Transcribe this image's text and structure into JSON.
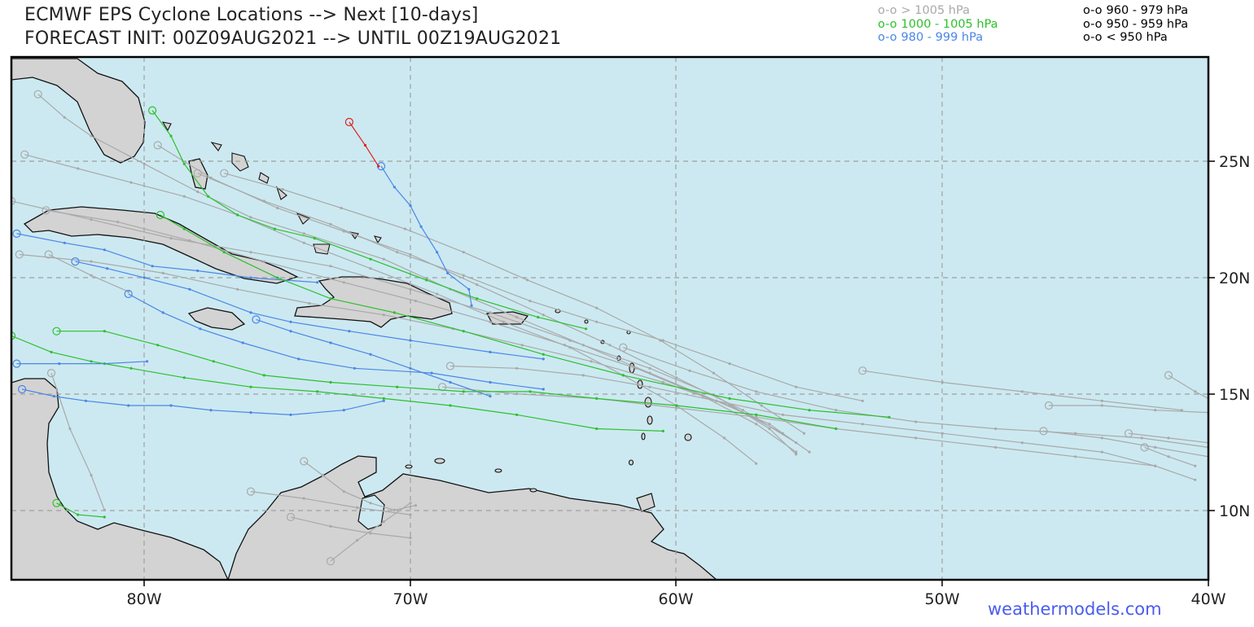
{
  "title": {
    "line1": "ECMWF EPS Cyclone Locations --> Next [10-days]",
    "line2": "FORECAST INIT: 00Z09AUG2021 --> UNTIL 00Z19AUG2021"
  },
  "legend": {
    "symbol": "o-o",
    "items": [
      {
        "label": "> 1005 hPa",
        "color": "#a9a9a9"
      },
      {
        "label": "1000 - 1005 hPa",
        "color": "#2cc02c"
      },
      {
        "label": "980 - 999 hPa",
        "color": "#4a86e8"
      },
      {
        "label": "960 - 979 hPa",
        "color": "#e02020"
      },
      {
        "label": "950 - 959 hPa",
        "color": "#f07070"
      },
      {
        "label": "< 950 hPa",
        "color": "#e020e0"
      }
    ]
  },
  "axes": {
    "lon_ticks": [
      "80W",
      "70W",
      "60W",
      "50W",
      "40W"
    ],
    "lat_ticks": [
      "25N",
      "20N",
      "15N",
      "10N"
    ],
    "lon_range": [
      -85,
      -40
    ],
    "lat_range": [
      7.5,
      30
    ]
  },
  "credit": "weathermodels.com",
  "colors": {
    "ocean": "#cce9f1",
    "land": "#d3d3d3",
    "coast": "#111111",
    "grid": "#a0a0a0"
  },
  "tracks": [
    {
      "category": "980 - 999 hPa",
      "points": [
        [
          -71.1,
          25.3
        ],
        [
          -70.6,
          24.4
        ],
        [
          -70.0,
          23.6
        ],
        [
          -69.6,
          22.7
        ],
        [
          -69.0,
          21.6
        ],
        [
          -68.6,
          20.7
        ],
        [
          -67.8,
          20.0
        ],
        [
          -67.7,
          19.3
        ]
      ]
    },
    {
      "category": "960 - 979 hPa",
      "points": [
        [
          -72.3,
          27.2
        ],
        [
          -71.7,
          26.2
        ],
        [
          -71.2,
          25.3
        ]
      ]
    },
    {
      "category": "980 - 999 hPa",
      "points": [
        [
          -84.8,
          22.4
        ],
        [
          -83.0,
          22.0
        ],
        [
          -81.5,
          21.7
        ],
        [
          -79.7,
          21.0
        ],
        [
          -78.0,
          20.8
        ],
        [
          -76.0,
          20.5
        ],
        [
          -73.5,
          20.3
        ]
      ]
    },
    {
      "category": "980 - 999 hPa",
      "points": [
        [
          -82.6,
          21.2
        ],
        [
          -81.4,
          20.9
        ],
        [
          -80.0,
          20.5
        ],
        [
          -78.3,
          20.0
        ],
        [
          -76.0,
          19.0
        ],
        [
          -74.5,
          18.6
        ],
        [
          -72.3,
          18.2
        ],
        [
          -70.0,
          17.8
        ],
        [
          -67.0,
          17.3
        ],
        [
          -65.0,
          17.0
        ]
      ]
    },
    {
      "category": "980 - 999 hPa",
      "points": [
        [
          -80.6,
          19.8
        ],
        [
          -79.3,
          19.0
        ],
        [
          -77.9,
          18.3
        ],
        [
          -76.3,
          17.7
        ],
        [
          -74.2,
          17.0
        ],
        [
          -72.1,
          16.6
        ],
        [
          -69.2,
          16.4
        ],
        [
          -67.0,
          16.0
        ],
        [
          -65.0,
          15.7
        ]
      ]
    },
    {
      "category": "980 - 999 hPa",
      "points": [
        [
          -84.8,
          16.8
        ],
        [
          -83.2,
          16.8
        ],
        [
          -81.5,
          16.8
        ],
        [
          -79.9,
          16.9
        ]
      ]
    },
    {
      "category": "980 - 999 hPa",
      "points": [
        [
          -84.6,
          15.7
        ],
        [
          -83.4,
          15.4
        ],
        [
          -82.2,
          15.2
        ],
        [
          -80.6,
          15.0
        ],
        [
          -79.0,
          15.0
        ],
        [
          -77.5,
          14.8
        ],
        [
          -76.0,
          14.7
        ],
        [
          -74.5,
          14.6
        ],
        [
          -72.5,
          14.8
        ],
        [
          -71.0,
          15.2
        ]
      ]
    },
    {
      "category": "980 - 999 hPa",
      "points": [
        [
          -75.8,
          18.7
        ],
        [
          -74.5,
          18.2
        ],
        [
          -73.0,
          17.7
        ],
        [
          -71.5,
          17.2
        ],
        [
          -70.0,
          16.6
        ],
        [
          -68.5,
          16.0
        ],
        [
          -67.0,
          15.4
        ]
      ]
    },
    {
      "category": "1000 - 1005 hPa",
      "points": [
        [
          -79.4,
          23.2
        ],
        [
          -78.5,
          22.6
        ],
        [
          -77.0,
          21.6
        ],
        [
          -75.0,
          20.5
        ],
        [
          -73.0,
          19.6
        ],
        [
          -70.6,
          19.0
        ],
        [
          -68.0,
          18.2
        ],
        [
          -65.0,
          17.2
        ],
        [
          -62.0,
          16.3
        ],
        [
          -58.0,
          15.3
        ],
        [
          -55.0,
          14.8
        ],
        [
          -52.0,
          14.5
        ]
      ]
    },
    {
      "category": "1000 - 1005 hPa",
      "points": [
        [
          -83.3,
          18.2
        ],
        [
          -81.5,
          18.2
        ],
        [
          -79.5,
          17.6
        ],
        [
          -77.4,
          16.9
        ],
        [
          -75.5,
          16.3
        ],
        [
          -73.0,
          16.0
        ],
        [
          -70.5,
          15.8
        ],
        [
          -68.0,
          15.6
        ],
        [
          -65.5,
          15.6
        ],
        [
          -63.0,
          15.3
        ],
        [
          -60.0,
          15.0
        ],
        [
          -57.0,
          14.6
        ],
        [
          -54.0,
          14.0
        ]
      ]
    },
    {
      "category": "1000 - 1005 hPa",
      "points": [
        [
          -85.0,
          18.0
        ],
        [
          -83.5,
          17.3
        ],
        [
          -82.0,
          16.9
        ],
        [
          -80.5,
          16.6
        ],
        [
          -78.5,
          16.2
        ],
        [
          -76.0,
          15.8
        ],
        [
          -73.5,
          15.6
        ],
        [
          -71.0,
          15.3
        ],
        [
          -68.5,
          15.0
        ],
        [
          -66.0,
          14.6
        ],
        [
          -63.0,
          14.0
        ],
        [
          -60.5,
          13.9
        ]
      ]
    },
    {
      "category": "1000 - 1005 hPa",
      "points": [
        [
          -83.3,
          10.8
        ],
        [
          -82.5,
          10.3
        ],
        [
          -81.5,
          10.2
        ]
      ]
    },
    {
      "category": "1000 - 1005 hPa",
      "points": [
        [
          -79.7,
          27.7
        ],
        [
          -79.0,
          26.6
        ],
        [
          -78.5,
          25.4
        ],
        [
          -77.6,
          24.0
        ],
        [
          -76.5,
          23.2
        ],
        [
          -75.1,
          22.6
        ],
        [
          -73.6,
          22.2
        ],
        [
          -71.5,
          21.3
        ],
        [
          -69.4,
          20.4
        ],
        [
          -67.5,
          19.6
        ],
        [
          -65.2,
          18.8
        ],
        [
          -63.4,
          18.3
        ]
      ]
    },
    {
      "category": "> 1005 hPa",
      "points": [
        [
          -78.0,
          25.0
        ],
        [
          -75.5,
          23.8
        ],
        [
          -73.0,
          22.8
        ],
        [
          -70.5,
          21.6
        ],
        [
          -68.0,
          20.6
        ],
        [
          -65.5,
          19.5
        ],
        [
          -63.0,
          18.6
        ],
        [
          -60.5,
          17.8
        ],
        [
          -58.0,
          16.8
        ],
        [
          -55.5,
          15.8
        ],
        [
          -53.0,
          15.2
        ]
      ]
    },
    {
      "category": "> 1005 hPa",
      "points": [
        [
          -85.0,
          23.8
        ],
        [
          -82.0,
          23.0
        ],
        [
          -79.0,
          22.2
        ],
        [
          -76.0,
          21.6
        ],
        [
          -73.0,
          21.0
        ],
        [
          -70.0,
          20.0
        ],
        [
          -67.0,
          19.0
        ],
        [
          -64.0,
          17.8
        ],
        [
          -61.0,
          16.6
        ],
        [
          -58.5,
          15.4
        ],
        [
          -56.5,
          14.0
        ],
        [
          -55.5,
          12.9
        ]
      ]
    },
    {
      "category": "> 1005 hPa",
      "points": [
        [
          -84.5,
          25.8
        ],
        [
          -82.5,
          25.2
        ],
        [
          -80.5,
          24.6
        ],
        [
          -78.5,
          24.0
        ],
        [
          -76.5,
          23.2
        ],
        [
          -74.0,
          22.0
        ],
        [
          -71.5,
          20.9
        ],
        [
          -69.0,
          19.8
        ],
        [
          -66.5,
          18.6
        ],
        [
          -64.0,
          17.5
        ],
        [
          -62.0,
          16.3
        ],
        [
          -60.0,
          15.0
        ],
        [
          -58.2,
          13.6
        ],
        [
          -57.0,
          12.5
        ]
      ]
    },
    {
      "category": "> 1005 hPa",
      "points": [
        [
          -84.0,
          28.4
        ],
        [
          -83.0,
          27.4
        ],
        [
          -82.0,
          26.6
        ],
        [
          -80.0,
          25.4
        ],
        [
          -78.0,
          24.2
        ],
        [
          -76.0,
          23.1
        ],
        [
          -74.0,
          22.4
        ],
        [
          -71.0,
          21.3
        ],
        [
          -68.5,
          20.0
        ],
        [
          -66.0,
          18.8
        ],
        [
          -63.5,
          17.6
        ],
        [
          -61.0,
          16.4
        ],
        [
          -58.5,
          15.2
        ],
        [
          -56.5,
          14.2
        ],
        [
          -55.0,
          13.0
        ]
      ]
    },
    {
      "category": "> 1005 hPa",
      "points": [
        [
          -79.5,
          26.2
        ],
        [
          -77.5,
          24.8
        ],
        [
          -75.0,
          23.5
        ],
        [
          -72.5,
          22.5
        ],
        [
          -70.0,
          21.5
        ],
        [
          -67.5,
          20.2
        ],
        [
          -65.0,
          18.9
        ],
        [
          -62.5,
          17.6
        ],
        [
          -60.0,
          16.2
        ],
        [
          -57.5,
          14.8
        ],
        [
          -55.5,
          13.4
        ]
      ]
    },
    {
      "category": "> 1005 hPa",
      "points": [
        [
          -83.7,
          23.4
        ],
        [
          -81.0,
          22.9
        ],
        [
          -78.3,
          22.1
        ],
        [
          -75.5,
          21.2
        ],
        [
          -72.5,
          20.3
        ],
        [
          -69.8,
          19.5
        ],
        [
          -67.0,
          18.6
        ],
        [
          -64.2,
          17.6
        ],
        [
          -61.5,
          16.6
        ],
        [
          -59.0,
          15.4
        ],
        [
          -57.0,
          14.2
        ],
        [
          -55.5,
          13.0
        ]
      ]
    },
    {
      "category": "> 1005 hPa",
      "points": [
        [
          -77.0,
          25.0
        ],
        [
          -74.8,
          24.3
        ],
        [
          -72.6,
          23.5
        ],
        [
          -70.2,
          22.6
        ],
        [
          -68.0,
          21.6
        ],
        [
          -65.6,
          20.4
        ],
        [
          -63.0,
          19.2
        ],
        [
          -60.6,
          17.8
        ],
        [
          -58.6,
          16.4
        ],
        [
          -56.8,
          15.0
        ],
        [
          -55.2,
          13.8
        ]
      ]
    },
    {
      "category": "> 1005 hPa",
      "points": [
        [
          -84.7,
          21.5
        ],
        [
          -82.0,
          21.2
        ],
        [
          -79.3,
          20.7
        ],
        [
          -76.5,
          20.0
        ],
        [
          -73.8,
          19.4
        ],
        [
          -71.0,
          18.9
        ],
        [
          -68.4,
          18.3
        ],
        [
          -65.8,
          17.6
        ],
        [
          -63.2,
          16.9
        ],
        [
          -60.5,
          16.0
        ],
        [
          -58.0,
          15.0
        ],
        [
          -56.0,
          13.8
        ]
      ]
    },
    {
      "category": "> 1005 hPa",
      "points": [
        [
          -68.5,
          16.7
        ],
        [
          -66.0,
          16.6
        ],
        [
          -63.5,
          16.3
        ],
        [
          -61.0,
          15.8
        ],
        [
          -58.5,
          15.2
        ],
        [
          -56.0,
          14.6
        ],
        [
          -53.0,
          14.2
        ],
        [
          -50.0,
          13.8
        ],
        [
          -47.0,
          13.4
        ],
        [
          -44.0,
          13.0
        ],
        [
          -42.0,
          12.4
        ],
        [
          -40.5,
          11.8
        ]
      ]
    },
    {
      "category": "> 1005 hPa",
      "points": [
        [
          -62.0,
          17.5
        ],
        [
          -59.5,
          16.5
        ],
        [
          -57.0,
          15.6
        ],
        [
          -54.0,
          14.8
        ],
        [
          -51.0,
          14.3
        ],
        [
          -48.0,
          14.0
        ],
        [
          -45.0,
          13.8
        ],
        [
          -42.5,
          13.6
        ],
        [
          -40.0,
          13.2
        ]
      ]
    },
    {
      "category": "> 1005 hPa",
      "points": [
        [
          -46.0,
          15.0
        ],
        [
          -44.0,
          15.0
        ],
        [
          -42.0,
          14.8
        ],
        [
          -40.0,
          14.7
        ]
      ]
    },
    {
      "category": "> 1005 hPa",
      "points": [
        [
          -41.5,
          16.3
        ],
        [
          -40.5,
          15.6
        ],
        [
          -39.5,
          15.0
        ]
      ]
    },
    {
      "category": "> 1005 hPa",
      "points": [
        [
          -46.2,
          13.9
        ],
        [
          -44.0,
          13.6
        ],
        [
          -42.0,
          13.2
        ],
        [
          -40.0,
          12.8
        ]
      ]
    },
    {
      "category": "> 1005 hPa",
      "points": [
        [
          -43.0,
          13.8
        ],
        [
          -41.5,
          13.6
        ],
        [
          -40.0,
          13.4
        ]
      ]
    },
    {
      "category": "> 1005 hPa",
      "points": [
        [
          -42.4,
          13.2
        ],
        [
          -41.5,
          12.8
        ],
        [
          -40.5,
          12.4
        ]
      ]
    },
    {
      "category": "> 1005 hPa",
      "points": [
        [
          -53.0,
          16.5
        ],
        [
          -50.0,
          16.0
        ],
        [
          -47.0,
          15.6
        ],
        [
          -44.0,
          15.2
        ],
        [
          -41.0,
          14.8
        ]
      ]
    },
    {
      "category": "> 1005 hPa",
      "points": [
        [
          -74.0,
          12.6
        ],
        [
          -73.3,
          12.0
        ],
        [
          -72.5,
          11.3
        ],
        [
          -71.5,
          10.8
        ],
        [
          -70.6,
          10.5
        ],
        [
          -69.8,
          10.7
        ]
      ]
    },
    {
      "category": "> 1005 hPa",
      "points": [
        [
          -76.0,
          11.3
        ],
        [
          -74.0,
          11.0
        ],
        [
          -72.0,
          10.6
        ],
        [
          -70.0,
          10.3
        ]
      ]
    },
    {
      "category": "> 1005 hPa",
      "points": [
        [
          -74.5,
          10.2
        ],
        [
          -73.0,
          9.8
        ],
        [
          -71.5,
          9.5
        ],
        [
          -70.0,
          9.3
        ]
      ]
    },
    {
      "category": "> 1005 hPa",
      "points": [
        [
          -73.0,
          8.3
        ],
        [
          -72.0,
          9.2
        ],
        [
          -71.0,
          10.0
        ],
        [
          -70.0,
          10.8
        ]
      ]
    },
    {
      "category": "> 1005 hPa",
      "points": [
        [
          -83.6,
          21.5
        ],
        [
          -82.0,
          20.6
        ],
        [
          -80.6,
          19.9
        ]
      ]
    },
    {
      "category": "> 1005 hPa",
      "points": [
        [
          -83.5,
          16.4
        ],
        [
          -82.8,
          14.0
        ],
        [
          -82.0,
          12.0
        ],
        [
          -81.5,
          10.5
        ]
      ]
    },
    {
      "category": "> 1005 hPa",
      "points": [
        [
          -68.8,
          15.8
        ],
        [
          -66.0,
          15.5
        ],
        [
          -63.0,
          15.3
        ],
        [
          -60.0,
          14.9
        ],
        [
          -57.0,
          14.5
        ],
        [
          -54.0,
          14.0
        ],
        [
          -51.0,
          13.6
        ],
        [
          -48.0,
          13.2
        ],
        [
          -45.0,
          12.8
        ],
        [
          -42.0,
          12.4
        ]
      ]
    }
  ]
}
